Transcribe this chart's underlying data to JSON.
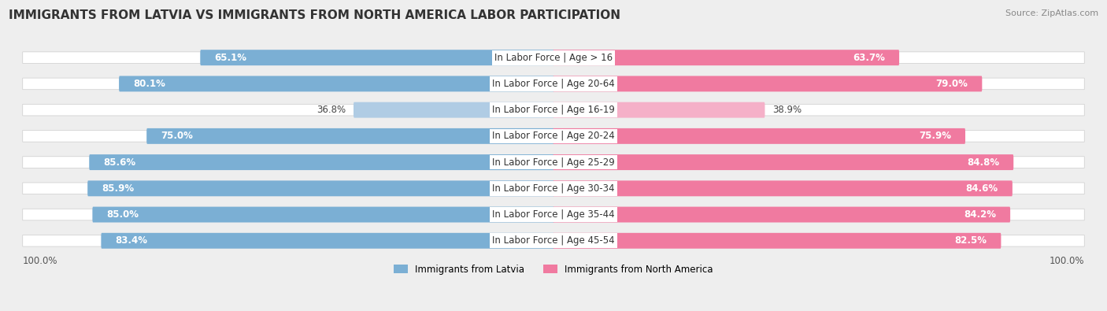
{
  "title": "IMMIGRANTS FROM LATVIA VS IMMIGRANTS FROM NORTH AMERICA LABOR PARTICIPATION",
  "source": "Source: ZipAtlas.com",
  "categories": [
    "In Labor Force | Age > 16",
    "In Labor Force | Age 20-64",
    "In Labor Force | Age 16-19",
    "In Labor Force | Age 20-24",
    "In Labor Force | Age 25-29",
    "In Labor Force | Age 30-34",
    "In Labor Force | Age 35-44",
    "In Labor Force | Age 45-54"
  ],
  "latvia_values": [
    65.1,
    80.1,
    36.8,
    75.0,
    85.6,
    85.9,
    85.0,
    83.4
  ],
  "north_america_values": [
    63.7,
    79.0,
    38.9,
    75.9,
    84.8,
    84.6,
    84.2,
    82.5
  ],
  "latvia_color": "#7bafd4",
  "latvia_light_color": "#b0cce4",
  "north_america_color": "#f07aa0",
  "north_america_light_color": "#f5b0c8",
  "max_value": 100.0,
  "legend_latvia": "Immigrants from Latvia",
  "legend_north_america": "Immigrants from North America",
  "bg_color": "#eeeeee",
  "title_fontsize": 11,
  "label_fontsize": 8.5,
  "value_fontsize": 8.5
}
